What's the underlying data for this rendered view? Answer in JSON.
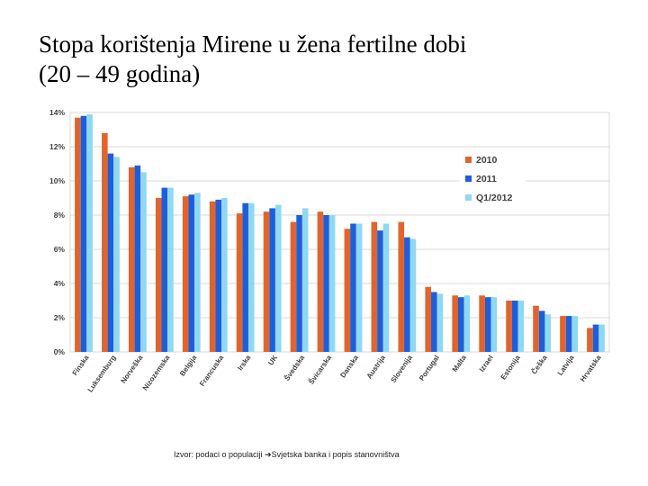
{
  "slide": {
    "title_line1": "Stopa korištenja Mirene u žena fertilne dobi",
    "title_line2": "(20 – 49 godina)"
  },
  "source": {
    "text_before": "Izvor: podaci o populaciji ",
    "arrow": "➔",
    "text_after": "Svjetska banka i  popis stanovništva"
  },
  "colors": {
    "series_2010": "#E0642D",
    "series_2011": "#1F5ED8",
    "series_q1_2012": "#8FD8F2",
    "grid": "#D9D9D9",
    "axis_text": "#404040"
  },
  "chart_data": {
    "type": "bar",
    "title": "",
    "xlabel": "",
    "ylabel": "",
    "ylim": [
      0,
      14
    ],
    "y_ticks": [
      0,
      2,
      4,
      6,
      8,
      10,
      12,
      14
    ],
    "y_tick_labels": [
      "0%",
      "2%",
      "4%",
      "6%",
      "8%",
      "10%",
      "12%",
      "14%"
    ],
    "grid": true,
    "legend_position": "right",
    "categories": [
      "Finska",
      "Luksemburg",
      "Norveška",
      "Nizozemska",
      "Belgija",
      "Francuska",
      "Irska",
      "UK",
      "Švedska",
      "Švicarska",
      "Danska",
      "Austrija",
      "Slovenija",
      "Portugal",
      "Malta",
      "Izrael",
      "Estonija",
      "Češka",
      "Latvija",
      "Hrvatska"
    ],
    "series": [
      {
        "name": "2010",
        "values": [
          13.7,
          12.8,
          10.8,
          9.0,
          9.1,
          8.8,
          8.1,
          8.2,
          7.6,
          8.2,
          7.2,
          7.6,
          7.6,
          3.8,
          3.3,
          3.3,
          3.0,
          2.7,
          2.1,
          1.4
        ]
      },
      {
        "name": "2011",
        "values": [
          13.8,
          11.6,
          10.9,
          9.6,
          9.2,
          8.9,
          8.7,
          8.4,
          8.0,
          8.0,
          7.5,
          7.1,
          6.7,
          3.5,
          3.2,
          3.2,
          3.0,
          2.4,
          2.1,
          1.6
        ]
      },
      {
        "name": "Q1/2012",
        "values": [
          13.9,
          11.4,
          10.5,
          9.6,
          9.3,
          9.0,
          8.7,
          8.6,
          8.4,
          8.0,
          7.5,
          7.5,
          6.6,
          3.4,
          3.3,
          3.2,
          3.0,
          2.2,
          2.1,
          1.6
        ]
      }
    ]
  }
}
